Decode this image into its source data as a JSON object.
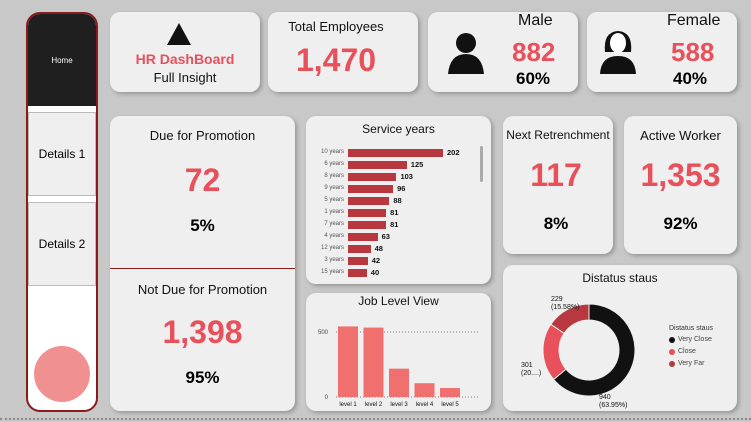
{
  "sidebar": {
    "items": [
      {
        "label": "Home"
      },
      {
        "label": "Details 1"
      },
      {
        "label": "Details 2"
      }
    ]
  },
  "header": {
    "logo_title": "HR DashBoard",
    "logo_subtitle": "Full Insight"
  },
  "kpis": {
    "total_employees": {
      "label": "Total Employees",
      "value": "1,470"
    },
    "male": {
      "label": "Male",
      "value": "882",
      "pct": "60%"
    },
    "female": {
      "label": "Female",
      "value": "588",
      "pct": "40%"
    },
    "due_promotion": {
      "label": "Due for Promotion",
      "value": "72",
      "pct": "5%"
    },
    "not_due_promotion": {
      "label": "Not Due for Promotion",
      "value": "1,398",
      "pct": "95%"
    },
    "next_retrenchment": {
      "label": "Next Retrenchment",
      "value": "117",
      "pct": "8%"
    },
    "active_worker": {
      "label": "Active Worker",
      "value": "1,353",
      "pct": "92%"
    }
  },
  "colors": {
    "accent": "#e8505b",
    "bar": "#b8383f",
    "job_bar": "#f07070",
    "donut": [
      "#111111",
      "#e8505b",
      "#b8383f"
    ]
  },
  "chart_data": [
    {
      "type": "bar",
      "title": "Service years",
      "orientation": "horizontal",
      "categories": [
        "10 years",
        "6 years",
        "8 years",
        "9 years",
        "5 years",
        "1 years",
        "7 years",
        "4 years",
        "12 years",
        "3 years",
        "15 years"
      ],
      "values": [
        202,
        125,
        103,
        96,
        88,
        81,
        81,
        63,
        48,
        42,
        40
      ],
      "value_labels": [
        "202",
        "125",
        "103",
        "96",
        "88",
        "81",
        "81",
        "63",
        "48",
        "42",
        "40"
      ]
    },
    {
      "type": "bar",
      "title": "Job Level View",
      "categories": [
        "level 1",
        "level 2",
        "level 3",
        "level 4",
        "level 5"
      ],
      "values": [
        543,
        534,
        218,
        106,
        69
      ],
      "yticks": [
        "500",
        "0"
      ],
      "ylim": [
        0,
        600
      ]
    },
    {
      "type": "pie",
      "title": "Distatus staus",
      "legend_title": "Distatus staus",
      "legend_position": "right",
      "categories": [
        "Very Close",
        "Close",
        "Very Far"
      ],
      "values": [
        940,
        301,
        229
      ],
      "labels": [
        {
          "value": "940",
          "pct": "(63.95%)"
        },
        {
          "value": "301",
          "pct": "(20....)"
        },
        {
          "value": "229",
          "pct": "(15.58%)"
        }
      ]
    }
  ]
}
